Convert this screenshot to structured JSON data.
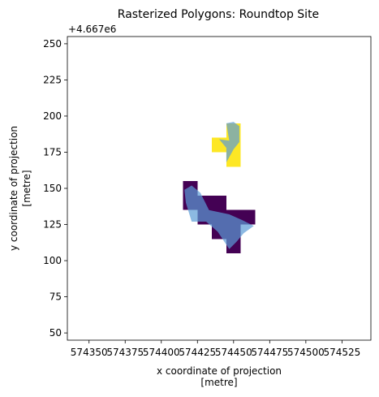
{
  "chart_data": {
    "type": "raster-map",
    "title": "Rasterized Polygons: Roundtop Site",
    "xlabel": [
      "x coordinate of projection",
      "[metre]"
    ],
    "ylabel": [
      "y coordinate of projection",
      "[metre]"
    ],
    "y_offset_label": "+4.667e6",
    "xlim": [
      574335,
      574545
    ],
    "ylim": [
      45,
      255
    ],
    "y_offset_value": 4667000,
    "x_ticks": [
      574350,
      574375,
      574400,
      574425,
      574450,
      574475,
      574500,
      574525
    ],
    "x_tick_labels": [
      "574350",
      "574375",
      "574400",
      "574425",
      "574450",
      "574475",
      "574500",
      "574525"
    ],
    "y_ticks": [
      50,
      75,
      100,
      125,
      150,
      175,
      200,
      225,
      250
    ],
    "y_tick_labels": [
      "50",
      "75",
      "100",
      "125",
      "150",
      "175",
      "200",
      "225",
      "250"
    ],
    "grid": false,
    "raster_cells": [
      {
        "class": "north",
        "color": "#fde725",
        "x0": 574445,
        "x1": 574455,
        "y0": 165,
        "y1": 175
      },
      {
        "class": "north",
        "color": "#fde725",
        "x0": 574435,
        "x1": 574445,
        "y0": 175,
        "y1": 185
      },
      {
        "class": "north",
        "color": "#fde725",
        "x0": 574445,
        "x1": 574455,
        "y0": 175,
        "y1": 185
      },
      {
        "class": "north",
        "color": "#fde725",
        "x0": 574445,
        "x1": 574455,
        "y0": 185,
        "y1": 195
      },
      {
        "class": "south",
        "color": "#440154",
        "x0": 574415,
        "x1": 574425,
        "y0": 145,
        "y1": 155
      },
      {
        "class": "south",
        "color": "#440154",
        "x0": 574415,
        "x1": 574425,
        "y0": 135,
        "y1": 145
      },
      {
        "class": "south",
        "color": "#440154",
        "x0": 574425,
        "x1": 574435,
        "y0": 135,
        "y1": 145
      },
      {
        "class": "south",
        "color": "#440154",
        "x0": 574435,
        "x1": 574445,
        "y0": 135,
        "y1": 145
      },
      {
        "class": "south",
        "color": "#440154",
        "x0": 574425,
        "x1": 574435,
        "y0": 125,
        "y1": 135
      },
      {
        "class": "south",
        "color": "#440154",
        "x0": 574435,
        "x1": 574445,
        "y0": 125,
        "y1": 135
      },
      {
        "class": "south",
        "color": "#440154",
        "x0": 574445,
        "x1": 574455,
        "y0": 125,
        "y1": 135
      },
      {
        "class": "south",
        "color": "#440154",
        "x0": 574455,
        "x1": 574465,
        "y0": 125,
        "y1": 135
      },
      {
        "class": "south",
        "color": "#440154",
        "x0": 574435,
        "x1": 574445,
        "y0": 115,
        "y1": 125
      },
      {
        "class": "south",
        "color": "#440154",
        "x0": 574445,
        "x1": 574455,
        "y0": 115,
        "y1": 125
      },
      {
        "class": "south",
        "color": "#440154",
        "x0": 574445,
        "x1": 574455,
        "y0": 105,
        "y1": 115
      }
    ],
    "polygons": [
      {
        "name": "north",
        "color": "#5b9bd5",
        "opacity": 0.7,
        "points": [
          [
            574445,
            195
          ],
          [
            574450,
            196
          ],
          [
            574454,
            193
          ],
          [
            574454,
            182
          ],
          [
            574450,
            177
          ],
          [
            574445,
            168
          ],
          [
            574445,
            178
          ],
          [
            574440,
            184
          ],
          [
            574447,
            183
          ]
        ]
      },
      {
        "name": "south",
        "color": "#5b9bd5",
        "opacity": 0.7,
        "points": [
          [
            574416,
            149
          ],
          [
            574421,
            152
          ],
          [
            574427,
            147
          ],
          [
            574433,
            135
          ],
          [
            574447,
            132
          ],
          [
            574456,
            128
          ],
          [
            574464,
            124
          ],
          [
            574457,
            119
          ],
          [
            574452,
            113
          ],
          [
            574447,
            108
          ],
          [
            574439,
            120
          ],
          [
            574431,
            127
          ],
          [
            574421,
            127
          ],
          [
            574417,
            140
          ]
        ]
      }
    ]
  }
}
